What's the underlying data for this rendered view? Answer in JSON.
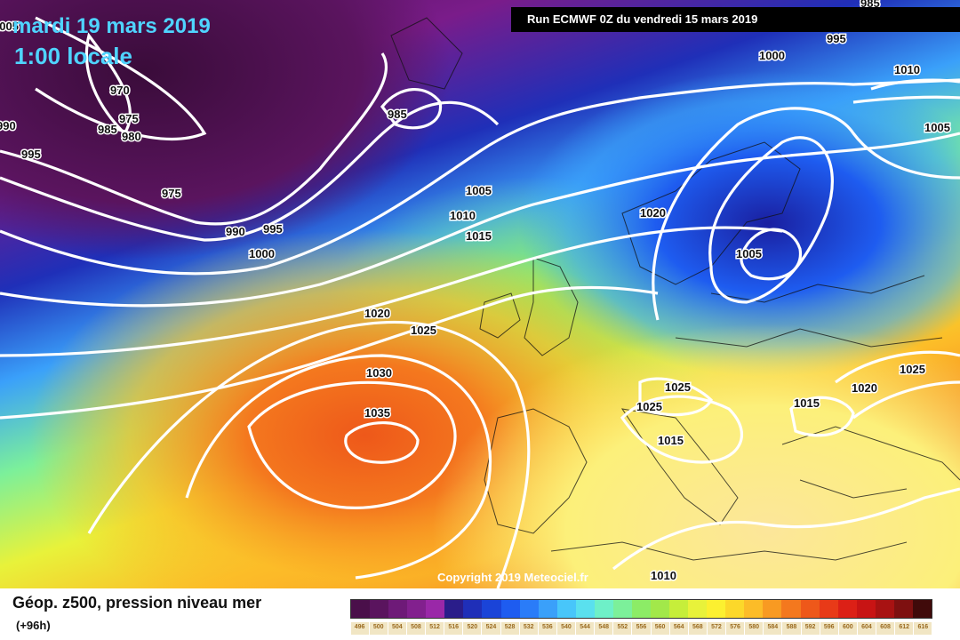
{
  "header": {
    "date": "mardi 19 mars 2019",
    "time": "1:00 locale",
    "run": "Run ECMWF 0Z du vendredi 15 mars 2019"
  },
  "copyright": "Copyright 2019 Meteociel.fr",
  "footer": {
    "title": "Géop. z500, pression niveau mer",
    "subtitle": "(+96h)"
  },
  "legend": {
    "values": [
      "496",
      "500",
      "504",
      "508",
      "512",
      "516",
      "520",
      "524",
      "528",
      "532",
      "536",
      "540",
      "544",
      "548",
      "552",
      "556",
      "560",
      "564",
      "568",
      "572",
      "576",
      "580",
      "584",
      "588",
      "592",
      "596",
      "600",
      "604",
      "608",
      "612",
      "616"
    ],
    "colors": [
      "#4a0f4a",
      "#5a145e",
      "#6e1a78",
      "#82208e",
      "#9a28a8",
      "#2a1d8a",
      "#1f2fb8",
      "#1a44d8",
      "#1e5cf0",
      "#2a7cf8",
      "#3aa0fa",
      "#48c6fa",
      "#5ae0ee",
      "#6ef0c8",
      "#7cf09a",
      "#8cec66",
      "#a2e84a",
      "#c6ee3a",
      "#e8f23a",
      "#fcf030",
      "#fcd82a",
      "#fcbc28",
      "#f89a22",
      "#f4781e",
      "#ee581a",
      "#e83a18",
      "#dc2016",
      "#c81414",
      "#a81212",
      "#7e1010",
      "#400a0a"
    ]
  },
  "isobars": [
    {
      "text": "970"
    },
    {
      "text": "975"
    },
    {
      "text": "985"
    },
    {
      "text": "980"
    },
    {
      "text": "995"
    },
    {
      "text": "990"
    },
    {
      "text": "975"
    },
    {
      "text": "990"
    },
    {
      "text": "995"
    },
    {
      "text": "1000"
    },
    {
      "text": "985"
    },
    {
      "text": "1005"
    },
    {
      "text": "1010"
    },
    {
      "text": "1015"
    },
    {
      "text": "1020"
    },
    {
      "text": "1025"
    },
    {
      "text": "1030"
    },
    {
      "text": "1035"
    },
    {
      "text": "1020"
    },
    {
      "text": "1005"
    },
    {
      "text": "1000"
    },
    {
      "text": "995"
    },
    {
      "text": "1010"
    },
    {
      "text": "1005"
    },
    {
      "text": "1025"
    },
    {
      "text": "1025"
    },
    {
      "text": "1015"
    },
    {
      "text": "1015"
    },
    {
      "text": "1020"
    },
    {
      "text": "1025"
    },
    {
      "text": "1010"
    },
    {
      "text": "1005"
    },
    {
      "text": "985"
    },
    {
      "text": "985"
    }
  ]
}
